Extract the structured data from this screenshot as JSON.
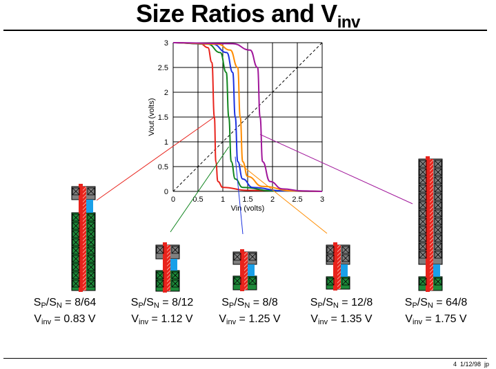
{
  "title": {
    "main": "Size Ratios and V",
    "sub": "inv"
  },
  "footer": "4  1/12/98  jp",
  "chart_data": {
    "type": "line",
    "xlabel": "Vin (volts)",
    "ylabel": "Vout (volts)",
    "xlim": [
      0,
      3
    ],
    "ylim": [
      0,
      3
    ],
    "xticks": [
      "0",
      "0.5",
      "1",
      "1.5",
      "2",
      "2.5",
      "3"
    ],
    "yticks": [
      "0",
      "0.5",
      "1",
      "1.5",
      "2",
      "2.5",
      "3"
    ],
    "grid": true,
    "diagonal": "dashed",
    "series": [
      {
        "color": "#e8231c",
        "vinv": 0.83,
        "vh": 0.55,
        "vl": 1.0,
        "values": [
          [
            0,
            3
          ],
          [
            0.55,
            2.98
          ],
          [
            0.7,
            2.9
          ],
          [
            0.78,
            2.6
          ],
          [
            0.83,
            1.5
          ],
          [
            0.86,
            0.6
          ],
          [
            0.9,
            0.2
          ],
          [
            1.0,
            0.08
          ],
          [
            1.5,
            0.02
          ],
          [
            3,
            0
          ]
        ]
      },
      {
        "color": "#10851e",
        "vinv": 1.12,
        "vh": 0.7,
        "vl": 1.4,
        "values": [
          [
            0,
            3
          ],
          [
            0.7,
            2.97
          ],
          [
            0.95,
            2.8
          ],
          [
            1.07,
            2.4
          ],
          [
            1.12,
            1.5
          ],
          [
            1.17,
            0.6
          ],
          [
            1.25,
            0.25
          ],
          [
            1.4,
            0.08
          ],
          [
            2,
            0.01
          ],
          [
            3,
            0
          ]
        ]
      },
      {
        "color": "#1a31e0",
        "vinv": 1.25,
        "vh": 0.8,
        "vl": 1.6,
        "values": [
          [
            0,
            3
          ],
          [
            0.8,
            2.97
          ],
          [
            1.08,
            2.8
          ],
          [
            1.2,
            2.4
          ],
          [
            1.25,
            1.5
          ],
          [
            1.3,
            0.6
          ],
          [
            1.4,
            0.25
          ],
          [
            1.6,
            0.08
          ],
          [
            2.2,
            0.01
          ],
          [
            3,
            0
          ]
        ]
      },
      {
        "color": "#ff8c00",
        "vinv": 1.35,
        "vh": 0.9,
        "vl": 1.8,
        "values": [
          [
            0,
            3
          ],
          [
            0.9,
            2.97
          ],
          [
            1.15,
            2.85
          ],
          [
            1.3,
            2.5
          ],
          [
            1.35,
            1.5
          ],
          [
            1.4,
            0.6
          ],
          [
            1.5,
            0.3
          ],
          [
            1.8,
            0.1
          ],
          [
            2.4,
            0.01
          ],
          [
            3,
            0
          ]
        ]
      },
      {
        "color": "#a0169a",
        "vinv": 1.75,
        "vh": 1.2,
        "vl": 2.4,
        "values": [
          [
            0,
            3
          ],
          [
            1.2,
            2.98
          ],
          [
            1.55,
            2.85
          ],
          [
            1.7,
            2.5
          ],
          [
            1.75,
            1.5
          ],
          [
            1.8,
            0.6
          ],
          [
            1.95,
            0.2
          ],
          [
            2.2,
            0.05
          ],
          [
            2.6,
            0.01
          ],
          [
            3,
            0
          ]
        ]
      }
    ]
  },
  "devices": [
    {
      "ratio_prefix": "S",
      "p": "P",
      "slash": "/S",
      "n": "N",
      "ratio": " = 8/64",
      "v_prefix": "V",
      "v_sub": "inv",
      "v_value": " = 0.83 V"
    },
    {
      "ratio_prefix": "S",
      "p": "P",
      "slash": "/S",
      "n": "N",
      "ratio": " = 8/12",
      "v_prefix": "V",
      "v_sub": "inv",
      "v_value": " = 1.12 V"
    },
    {
      "ratio_prefix": "S",
      "p": "P",
      "slash": "/S",
      "n": "N",
      "ratio": " = 8/8",
      "v_prefix": "V",
      "v_sub": "inv",
      "v_value": " = 1.25 V"
    },
    {
      "ratio_prefix": "S",
      "p": "P",
      "slash": "/S",
      "n": "N",
      "ratio": " = 12/8",
      "v_prefix": "V",
      "v_sub": "inv",
      "v_value": " = 1.35 V"
    },
    {
      "ratio_prefix": "S",
      "p": "P",
      "slash": "/S",
      "n": "N",
      "ratio": " = 64/8",
      "v_prefix": "V",
      "v_sub": "inv",
      "v_value": " = 1.75 V"
    }
  ],
  "colors": {
    "pmos": "#808080",
    "nmos": "#1e8a3a",
    "poly": "#e8231c",
    "diff": "#1aa0e8"
  }
}
